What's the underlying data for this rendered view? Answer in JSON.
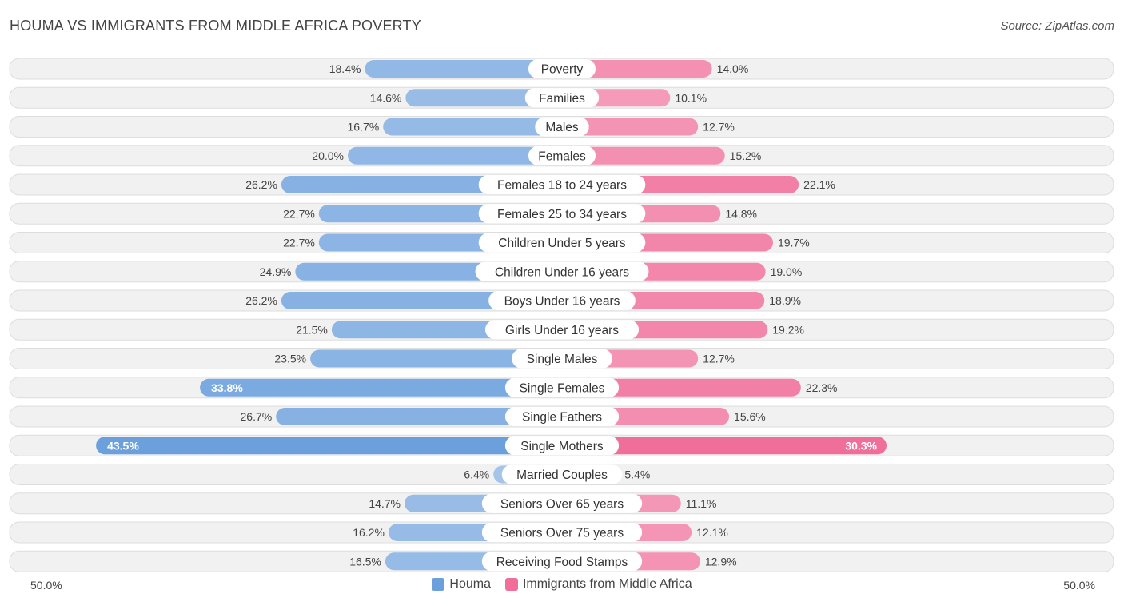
{
  "header": {
    "title": "HOUMA VS IMMIGRANTS FROM MIDDLE AFRICA POVERTY",
    "source": "Source: ZipAtlas.com"
  },
  "colors": {
    "left": "#6ca0dc",
    "right": "#f06e9a"
  },
  "chart_data": {
    "type": "bar",
    "orientation": "horizontal-diverging",
    "title": "HOUMA VS IMMIGRANTS FROM MIDDLE AFRICA POVERTY",
    "xlim": [
      -50,
      50
    ],
    "axis_left_label": "50.0%",
    "axis_right_label": "50.0%",
    "categories": [
      "Poverty",
      "Families",
      "Males",
      "Females",
      "Females 18 to 24 years",
      "Females 25 to 34 years",
      "Children Under 5 years",
      "Children Under 16 years",
      "Boys Under 16 years",
      "Girls Under 16 years",
      "Single Males",
      "Single Females",
      "Single Fathers",
      "Single Mothers",
      "Married Couples",
      "Seniors Over 65 years",
      "Seniors Over 75 years",
      "Receiving Food Stamps"
    ],
    "series": [
      {
        "name": "Houma",
        "values": [
          18.4,
          14.6,
          16.7,
          20.0,
          26.2,
          22.7,
          22.7,
          24.9,
          26.2,
          21.5,
          23.5,
          33.8,
          26.7,
          43.5,
          6.4,
          14.7,
          16.2,
          16.5
        ],
        "labels": [
          "18.4%",
          "14.6%",
          "16.7%",
          "20.0%",
          "26.2%",
          "22.7%",
          "22.7%",
          "24.9%",
          "26.2%",
          "21.5%",
          "23.5%",
          "33.8%",
          "26.7%",
          "43.5%",
          "6.4%",
          "14.7%",
          "16.2%",
          "16.5%"
        ]
      },
      {
        "name": "Immigrants from Middle Africa",
        "values": [
          14.0,
          10.1,
          12.7,
          15.2,
          22.1,
          14.8,
          19.7,
          19.0,
          18.9,
          19.2,
          12.7,
          22.3,
          15.6,
          30.3,
          5.4,
          11.1,
          12.1,
          12.9
        ],
        "labels": [
          "14.0%",
          "10.1%",
          "12.7%",
          "15.2%",
          "22.1%",
          "14.8%",
          "19.7%",
          "19.0%",
          "18.9%",
          "19.2%",
          "12.7%",
          "22.3%",
          "15.6%",
          "30.3%",
          "5.4%",
          "11.1%",
          "12.1%",
          "12.9%"
        ]
      }
    ],
    "legend": [
      "Houma",
      "Immigrants from Middle Africa"
    ],
    "legend_position": "bottom-center"
  }
}
